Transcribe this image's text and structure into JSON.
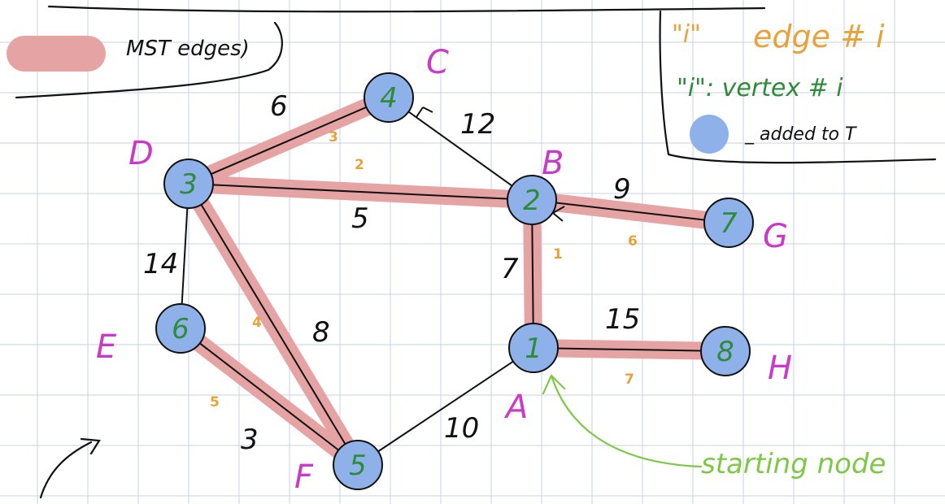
{
  "legend": {
    "mst_label": "MST edges)",
    "edge_key_quote": "\"i\"",
    "edge_key_text": "edge # i",
    "vertex_key_text": "\"i\": vertex # i",
    "added_key_text": "_ added to T"
  },
  "colors": {
    "mst_highlight": "#e6a3a3",
    "node_fill": "#8fb1ea",
    "node_number": "#2e8b3a",
    "letter": "#c93ac9",
    "edge_order": "#e8a23a",
    "start_arrow": "#7dc845",
    "ink": "#111111",
    "grid": "#c9d1e6"
  },
  "nodes": [
    {
      "id": "A",
      "letter": "A",
      "order": "1"
    },
    {
      "id": "B",
      "letter": "B",
      "order": "2"
    },
    {
      "id": "C",
      "letter": "C",
      "order": "4"
    },
    {
      "id": "D",
      "letter": "D",
      "order": "3"
    },
    {
      "id": "E",
      "letter": "E",
      "order": "6"
    },
    {
      "id": "F",
      "letter": "F",
      "order": "5"
    },
    {
      "id": "G",
      "letter": "G",
      "order": "7"
    },
    {
      "id": "H",
      "letter": "H",
      "order": "8"
    }
  ],
  "edges": [
    {
      "id": "AB",
      "weight": "7",
      "mst": true,
      "order": "1"
    },
    {
      "id": "BD",
      "weight": "5",
      "mst": true,
      "order": "2"
    },
    {
      "id": "DC",
      "weight": "6",
      "mst": true,
      "order": "3"
    },
    {
      "id": "DF",
      "weight": "8",
      "mst": true,
      "order": "4"
    },
    {
      "id": "EF",
      "weight": "3",
      "mst": true,
      "order": "5"
    },
    {
      "id": "BG",
      "weight": "9",
      "mst": true,
      "order": "6"
    },
    {
      "id": "AH",
      "weight": "15",
      "mst": true,
      "order": "7"
    },
    {
      "id": "BC",
      "weight": "12",
      "mst": false,
      "order": ""
    },
    {
      "id": "DE",
      "weight": "14",
      "mst": false,
      "order": ""
    },
    {
      "id": "AF",
      "weight": "10",
      "mst": false,
      "order": ""
    }
  ],
  "start_label": "starting node"
}
